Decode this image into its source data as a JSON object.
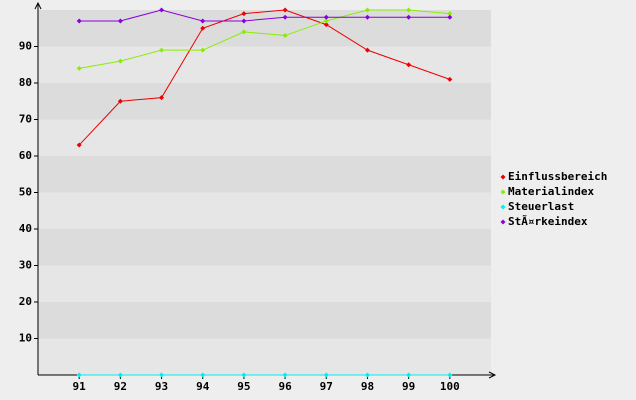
{
  "chart_data": {
    "type": "line",
    "x": [
      91,
      92,
      93,
      94,
      95,
      96,
      97,
      98,
      99,
      100
    ],
    "xlim": [
      90,
      101
    ],
    "xticks": [
      91,
      92,
      93,
      94,
      95,
      96,
      97,
      98,
      99,
      100
    ],
    "ylim": [
      0,
      100
    ],
    "yticks": [
      10,
      20,
      30,
      40,
      50,
      60,
      70,
      80,
      90
    ],
    "grid": true,
    "legend": "right",
    "series": [
      {
        "name": "Einflussbereich",
        "color": "#ee0000",
        "values": [
          63,
          75,
          76,
          95,
          99,
          100,
          96,
          89,
          85,
          81
        ]
      },
      {
        "name": "Materialindex",
        "color": "#88ee00",
        "values": [
          84,
          86,
          89,
          89,
          94,
          93,
          97,
          100,
          100,
          99
        ]
      },
      {
        "name": "Steuerlast",
        "color": "#00eeee",
        "values": [
          0,
          0,
          0,
          0,
          0,
          0,
          0,
          0,
          0,
          0
        ]
      },
      {
        "name": "StÃ¤rkeindex",
        "color": "#8800dd",
        "values": [
          97,
          97,
          100,
          97,
          97,
          98,
          98,
          98,
          98,
          98
        ]
      }
    ]
  }
}
